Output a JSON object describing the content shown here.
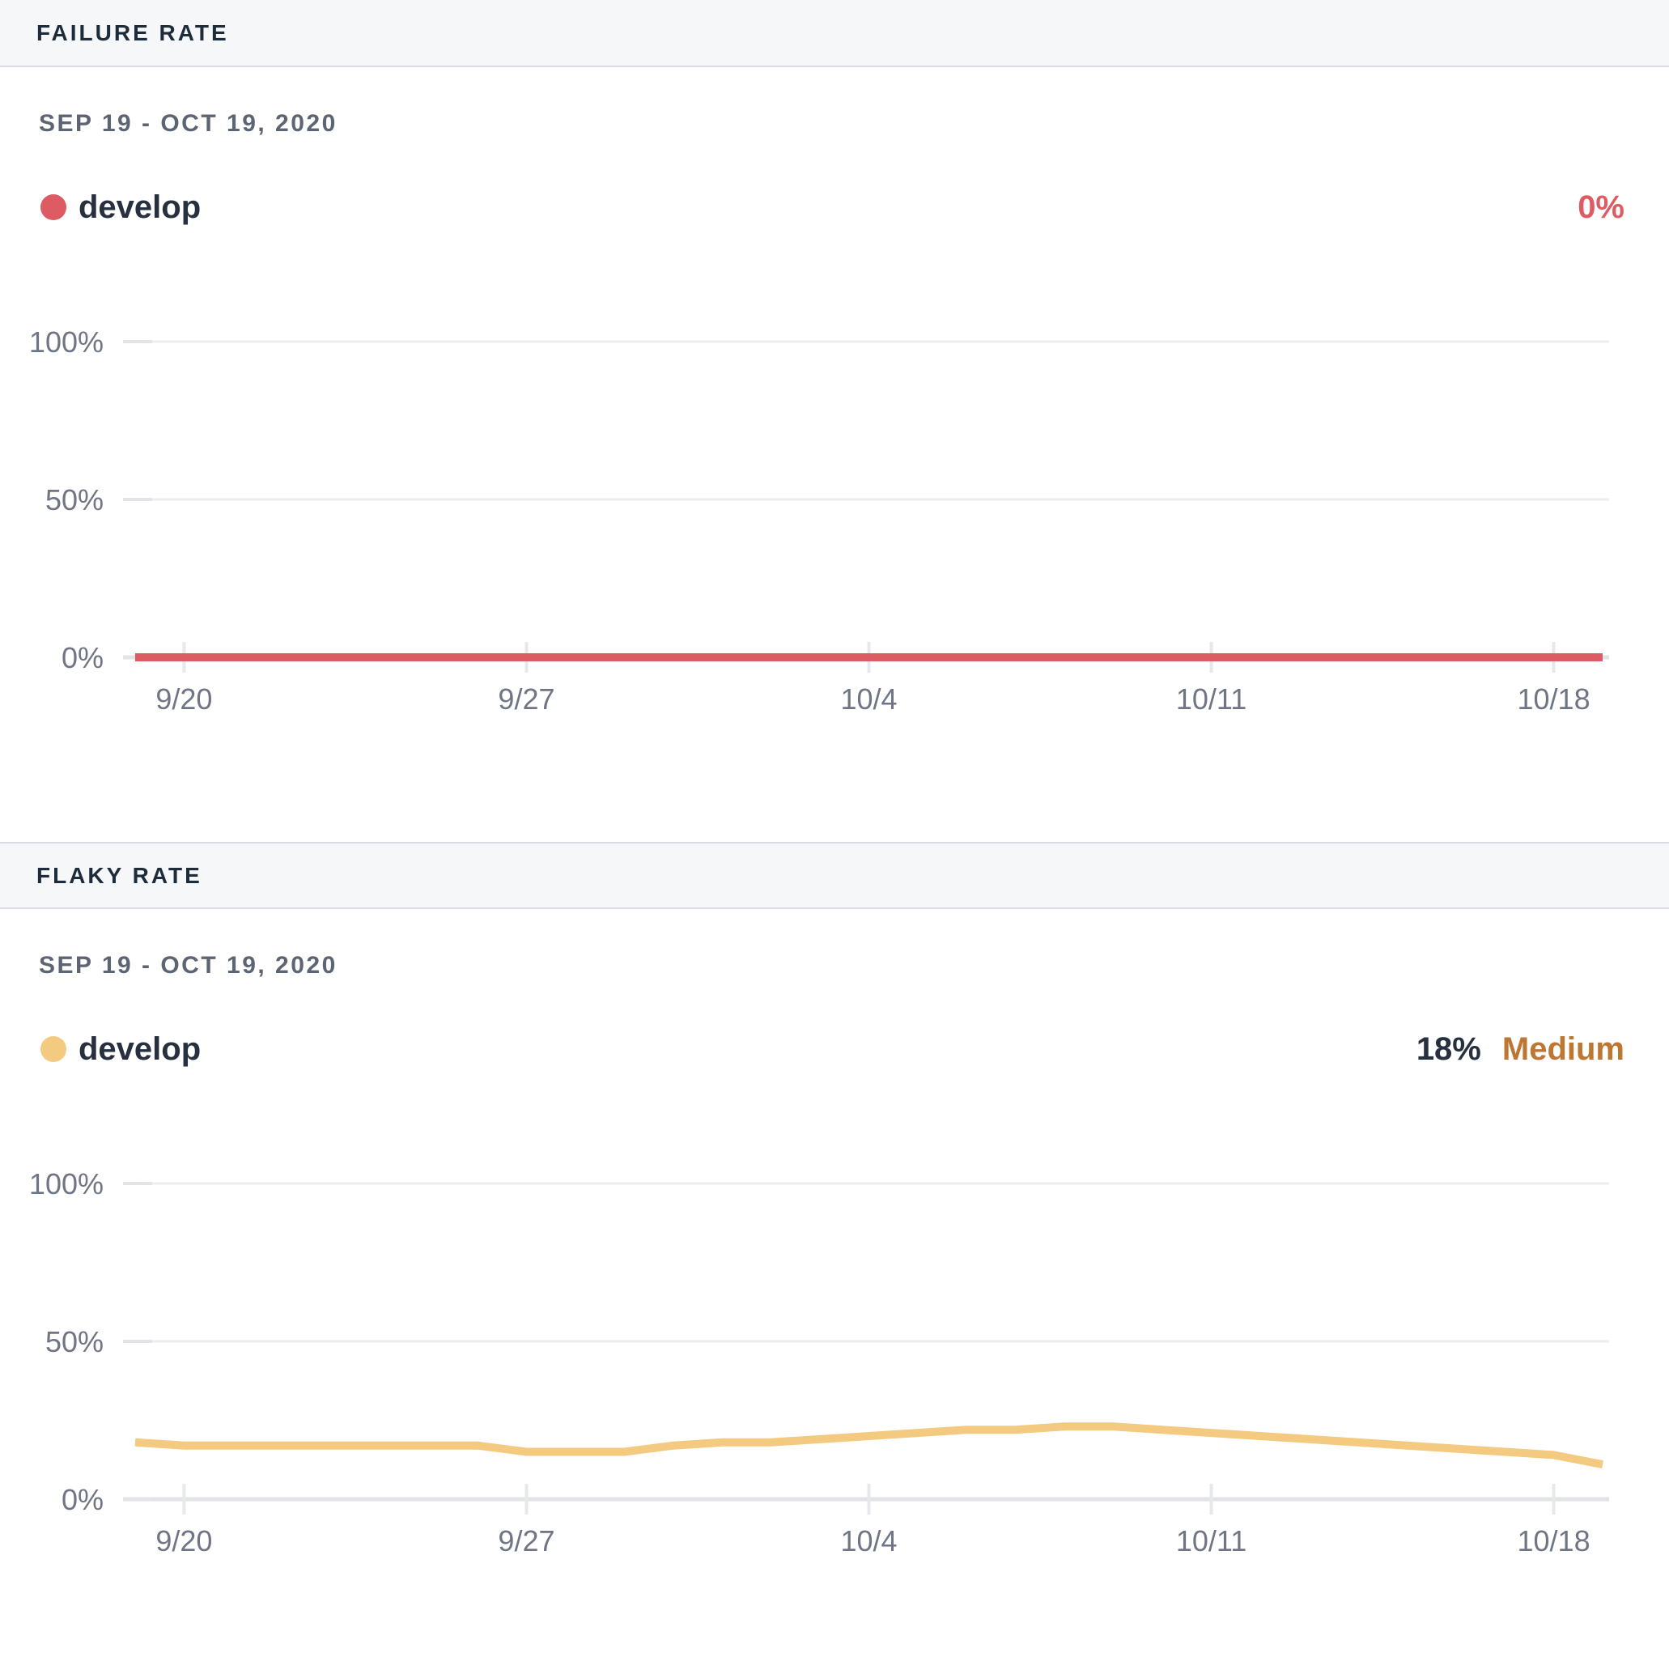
{
  "panels": [
    {
      "header": "FAILURE RATE",
      "date_range": "SEP 19 - OCT 19, 2020",
      "legend": {
        "series": "develop",
        "color": "#dd5b62"
      },
      "value": {
        "rate": "0%",
        "rate_color": "#dd5b62",
        "severity": "",
        "severity_color": "#bd7732"
      }
    },
    {
      "header": "FLAKY RATE",
      "date_range": "SEP 19 - OCT 19, 2020",
      "legend": {
        "series": "develop",
        "color": "#f4ca81"
      },
      "value": {
        "rate": "18%",
        "rate_color": "#26303e",
        "severity": "Medium",
        "severity_color": "#bd7732"
      }
    }
  ],
  "chart_data": [
    {
      "type": "line",
      "title": "Failure Rate",
      "x": [
        "9/19",
        "9/20",
        "9/21",
        "9/22",
        "9/23",
        "9/24",
        "9/25",
        "9/26",
        "9/27",
        "9/28",
        "9/29",
        "9/30",
        "10/1",
        "10/2",
        "10/3",
        "10/4",
        "10/5",
        "10/6",
        "10/7",
        "10/8",
        "10/9",
        "10/10",
        "10/11",
        "10/12",
        "10/13",
        "10/14",
        "10/15",
        "10/16",
        "10/17",
        "10/18",
        "10/19"
      ],
      "series": [
        {
          "name": "develop",
          "color": "#dd5b62",
          "values": [
            0,
            0,
            0,
            0,
            0,
            0,
            0,
            0,
            0,
            0,
            0,
            0,
            0,
            0,
            0,
            0,
            0,
            0,
            0,
            0,
            0,
            0,
            0,
            0,
            0,
            0,
            0,
            0,
            0,
            0,
            0
          ]
        }
      ],
      "x_ticks": [
        {
          "label": "9/20",
          "index": 1
        },
        {
          "label": "9/27",
          "index": 8
        },
        {
          "label": "10/4",
          "index": 15
        },
        {
          "label": "10/11",
          "index": 22
        },
        {
          "label": "10/18",
          "index": 29
        }
      ],
      "y_ticks": [
        {
          "label": "0%",
          "value": 0
        },
        {
          "label": "50%",
          "value": 50
        },
        {
          "label": "100%",
          "value": 100
        }
      ],
      "ylim": [
        0,
        100
      ],
      "grid": true,
      "legend_position": "top-left"
    },
    {
      "type": "line",
      "title": "Flaky Rate",
      "x": [
        "9/19",
        "9/20",
        "9/21",
        "9/22",
        "9/23",
        "9/24",
        "9/25",
        "9/26",
        "9/27",
        "9/28",
        "9/29",
        "9/30",
        "10/1",
        "10/2",
        "10/3",
        "10/4",
        "10/5",
        "10/6",
        "10/7",
        "10/8",
        "10/9",
        "10/10",
        "10/11",
        "10/12",
        "10/13",
        "10/14",
        "10/15",
        "10/16",
        "10/17",
        "10/18",
        "10/19"
      ],
      "series": [
        {
          "name": "develop",
          "color": "#f4ca81",
          "values": [
            18,
            17,
            17,
            17,
            17,
            17,
            17,
            17,
            15,
            15,
            15,
            17,
            18,
            18,
            19,
            20,
            21,
            22,
            22,
            23,
            23,
            22,
            21,
            20,
            19,
            18,
            17,
            16,
            15,
            14,
            11
          ]
        }
      ],
      "x_ticks": [
        {
          "label": "9/20",
          "index": 1
        },
        {
          "label": "9/27",
          "index": 8
        },
        {
          "label": "10/4",
          "index": 15
        },
        {
          "label": "10/11",
          "index": 22
        },
        {
          "label": "10/18",
          "index": 29
        }
      ],
      "y_ticks": [
        {
          "label": "0%",
          "value": 0
        },
        {
          "label": "50%",
          "value": 50
        },
        {
          "label": "100%",
          "value": 100
        }
      ],
      "ylim": [
        0,
        100
      ],
      "grid": true,
      "legend_position": "top-left"
    }
  ],
  "chart_colors": {
    "gridline": "#ededf0",
    "axis_line": "#e2e3e7",
    "y_tick_stub": "#e3e4e8",
    "x_tick": "#e7e8eb",
    "axis_label": "#6f7584"
  }
}
